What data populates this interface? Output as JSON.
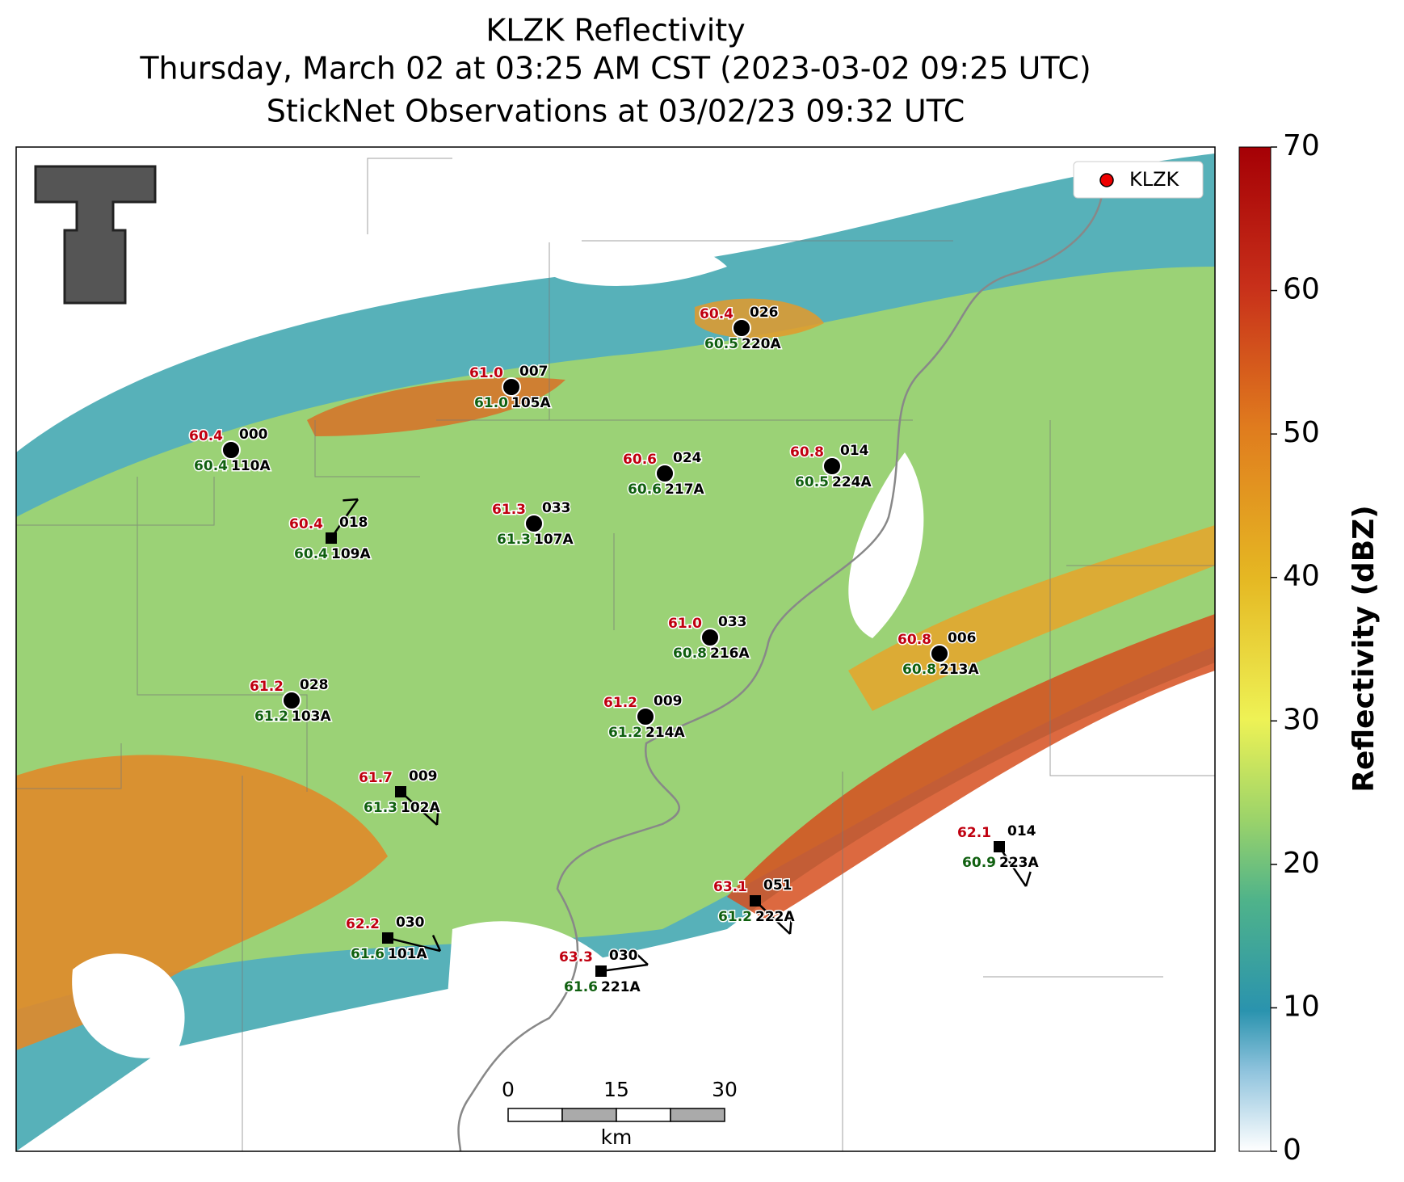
{
  "title": [
    "KLZK Reflectivity",
    "Thursday, March 02 at 03:25 AM CST (2023-03-02 09:25 UTC)",
    "StickNet Observations at 03/02/23 09:32 UTC"
  ],
  "legend": {
    "label": "KLZK"
  },
  "colorbar": {
    "label": "Reflectivity (dBZ)",
    "lim": [
      0,
      70
    ],
    "ticks": [
      0,
      10,
      20,
      30,
      40,
      50,
      60,
      70
    ]
  },
  "scale_bar": {
    "ticks": [
      0,
      15,
      30
    ],
    "unit": "km"
  },
  "stations": [
    {
      "temperature": "60.4",
      "wind_dir": "000",
      "dewpoint": "60.4",
      "id": "110A"
    },
    {
      "temperature": "61.0",
      "wind_dir": "007",
      "dewpoint": "61.0",
      "id": "105A"
    },
    {
      "temperature": "60.4",
      "wind_dir": "026",
      "dewpoint": "60.5",
      "id": "220A"
    },
    {
      "temperature": "60.6",
      "wind_dir": "024",
      "dewpoint": "60.6",
      "id": "217A"
    },
    {
      "temperature": "60.8",
      "wind_dir": "014",
      "dewpoint": "60.5",
      "id": "224A"
    },
    {
      "temperature": "61.3",
      "wind_dir": "033",
      "dewpoint": "61.3",
      "id": "107A"
    },
    {
      "temperature": "60.4",
      "wind_dir": "018",
      "dewpoint": "60.4",
      "id": "109A"
    },
    {
      "temperature": "61.0",
      "wind_dir": "033",
      "dewpoint": "60.8",
      "id": "216A"
    },
    {
      "temperature": "60.8",
      "wind_dir": "006",
      "dewpoint": "60.8",
      "id": "213A"
    },
    {
      "temperature": "61.2",
      "wind_dir": "028",
      "dewpoint": "61.2",
      "id": "103A"
    },
    {
      "temperature": "61.2",
      "wind_dir": "009",
      "dewpoint": "61.2",
      "id": "214A"
    },
    {
      "temperature": "61.7",
      "wind_dir": "009",
      "dewpoint": "61.3",
      "id": "102A"
    },
    {
      "temperature": "62.1",
      "wind_dir": "014",
      "dewpoint": "60.9",
      "id": "223A"
    },
    {
      "temperature": "63.1",
      "wind_dir": "051",
      "dewpoint": "61.2",
      "id": "222A"
    },
    {
      "temperature": "62.2",
      "wind_dir": "030",
      "dewpoint": "61.6",
      "id": "101A"
    },
    {
      "temperature": "63.3",
      "wind_dir": "030",
      "dewpoint": "61.6",
      "id": "221A"
    }
  ]
}
